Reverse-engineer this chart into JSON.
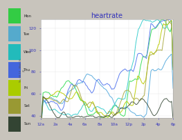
{
  "title": "heartrate",
  "title_color": "#3333bb",
  "bg_color": "#c8c4bc",
  "plot_bg": "#ffffff",
  "sidebar_bg": "#c8c4bc",
  "x_ticks": [
    "12a",
    "2a",
    "4a",
    "6a",
    "8a",
    "10a",
    "12p",
    "2p",
    "4p",
    "6p"
  ],
  "y_ticks": [
    40,
    60,
    80,
    100,
    120
  ],
  "ylim": [
    38,
    128
  ],
  "days": [
    "Mon",
    "Tue",
    "Wed",
    "Thu",
    "Fri",
    "Sat",
    "Sun"
  ],
  "day_colors": [
    "#33dd55",
    "#55aadd",
    "#33cccc",
    "#5577ee",
    "#bbcc00",
    "#aaaa44",
    "#445544"
  ],
  "day_bar_colors": [
    "#33cc44",
    "#55aacc",
    "#22bbbb",
    "#4466dd",
    "#aacc00",
    "#999933",
    "#334433"
  ],
  "n_points": 180,
  "seeds": [
    11,
    22,
    33,
    44,
    55,
    66,
    77
  ],
  "base_hrs": [
    58,
    56,
    57,
    57,
    58,
    57,
    57
  ]
}
